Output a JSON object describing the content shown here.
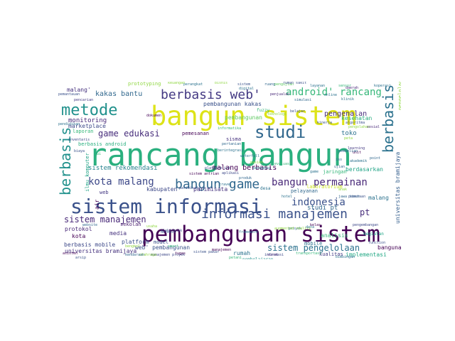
{
  "cloud": {
    "words": [
      {
        "text": "rancang bangun",
        "color": "#2bb07f"
      },
      {
        "text": "bangun sistem",
        "color": "#dde318"
      },
      {
        "text": "pembangunan sistem",
        "color": "#440154"
      },
      {
        "text": "sistem informasi",
        "color": "#3b528b"
      },
      {
        "text": "metode",
        "color": "#21918c"
      },
      {
        "text": "berbasis web'",
        "color": "#443983"
      },
      {
        "text": "studi",
        "color": "#31688e"
      },
      {
        "text": "informasi manajemen",
        "color": "#3b528b"
      },
      {
        "text": "bangun game",
        "color": "#31688e"
      },
      {
        "text": "berbasis",
        "color": "#21918c"
      },
      {
        "text": "berbasis web",
        "color": "#2c728e"
      },
      {
        "text": "android' rancang",
        "color": "#35b779"
      },
      {
        "text": "kota malang",
        "color": "#3e4989"
      },
      {
        "text": "bangun permainan",
        "color": "#482878"
      },
      {
        "text": "indonesia",
        "color": "#3b528b"
      },
      {
        "text": "game edukasi",
        "color": "#472d7b"
      },
      {
        "text": "sistem manajemen",
        "color": "#482878"
      },
      {
        "text": "sistem pengelolaan",
        "color": "#2c728e"
      },
      {
        "text": "kakas bantu",
        "color": "#31688e"
      },
      {
        "text": "pengenalan",
        "color": "#472d7b"
      },
      {
        "text": "malang berbasis",
        "color": "#440154"
      },
      {
        "text": "sistem rekomendasi",
        "color": "#26828e"
      },
      {
        "text": "pembangunan kakas",
        "color": "#3b528b"
      },
      {
        "text": "monitoring",
        "color": "#482878"
      },
      {
        "text": "malang'",
        "color": "#46327e"
      },
      {
        "text": "marketplace",
        "color": "#3e4989"
      },
      {
        "text": "pembangunan",
        "color": "#5ec962"
      },
      {
        "text": "toko",
        "color": "#2c728e"
      },
      {
        "text": "kesehatan",
        "color": "#28ae80"
      },
      {
        "text": "berdasarkan",
        "color": "#20a386"
      },
      {
        "text": "kabupaten",
        "color": "#3e4989"
      },
      {
        "text": "parimisata",
        "color": "#46327e"
      },
      {
        "text": "studi pt",
        "color": "#31688e"
      },
      {
        "text": "pt",
        "color": "#472d7b"
      },
      {
        "text": "malang",
        "color": "#2c728e"
      },
      {
        "text": "universitas bramijaya",
        "color": "#355f8d"
      },
      {
        "text": "bangunan",
        "color": "#440154"
      },
      {
        "text": "berbasis mobile",
        "color": "#3e4989"
      },
      {
        "text": "platform",
        "color": "#3b528b"
      },
      {
        "text": "universitas bramijaya",
        "color": "#46327e"
      },
      {
        "text": "web' pembangunan",
        "color": "#3b528b"
      },
      {
        "text": "rumah",
        "color": "#2c728e"
      },
      {
        "text": "kota",
        "color": "#440154"
      },
      {
        "text": "protokol",
        "color": "#482878"
      },
      {
        "text": "media",
        "color": "#46327e"
      },
      {
        "text": "sekolah",
        "color": "#481c6e"
      },
      {
        "text": "analisis",
        "color": "#35b779"
      },
      {
        "text": "kualitas",
        "color": "#443983"
      },
      {
        "text": "implementasi",
        "color": "#22a884"
      },
      {
        "text": "pelayanan",
        "color": "#31688e"
      },
      {
        "text": "laboratorium",
        "color": "#cae11f"
      },
      {
        "text": "pemesanan",
        "color": "#440154"
      },
      {
        "text": "sisma",
        "color": "#46327e"
      },
      {
        "text": "laporan",
        "color": "#35b779"
      },
      {
        "text": "berbasis android",
        "color": "#29af7f"
      },
      {
        "text": "model",
        "color": "#3b528b"
      },
      {
        "text": "jaringan",
        "color": "#35b779"
      },
      {
        "text": "mobile",
        "color": "#2c728e"
      },
      {
        "text": "prototyping",
        "color": "#90d743"
      },
      {
        "text": "air",
        "color": "#440154"
      },
      {
        "text": "web",
        "color": "#443983"
      },
      {
        "text": "pembelajaran",
        "color": "#21918c"
      },
      {
        "text": "kegiatan",
        "color": "#20a386"
      },
      {
        "text": "pengelolaan",
        "color": "#90d743"
      },
      {
        "text": "ilmu komputer",
        "color": "#20a386"
      },
      {
        "text": "fuzzy",
        "color": "#35b779"
      },
      {
        "text": "desa",
        "color": "#2c728e"
      },
      {
        "text": "sistem",
        "color": "#3b528b"
      },
      {
        "text": "perangkat",
        "color": "#2c728e"
      },
      {
        "text": "digital",
        "color": "#2c728e"
      },
      {
        "text": "algoritma",
        "color": "#3b528b"
      },
      {
        "text": "berintegrasi",
        "color": "#2c728e"
      },
      {
        "text": "waterfall",
        "color": "#2c728e"
      },
      {
        "text": "pasien",
        "color": "#90d743"
      },
      {
        "text": "learning",
        "color": "#443983"
      },
      {
        "text": "aplikasi",
        "color": "#3e4989"
      },
      {
        "text": "unit",
        "color": "#440154"
      },
      {
        "text": "kinerja",
        "color": "#3b528b"
      },
      {
        "text": "ruang",
        "color": "#31688e"
      },
      {
        "text": "evaluasi",
        "color": "#35b779"
      },
      {
        "text": "usaha",
        "color": "#90d743"
      },
      {
        "text": "keuangan",
        "color": "#90d743"
      },
      {
        "text": "layanan",
        "color": "#2c728e"
      },
      {
        "text": "pengujian",
        "color": "#5ec962"
      },
      {
        "text": "bisnis",
        "color": "#90d743"
      },
      {
        "text": "pencarian",
        "color": "#443983"
      },
      {
        "text": "proyek",
        "color": "#31688e"
      },
      {
        "text": "simulasi",
        "color": "#31688e"
      },
      {
        "text": "informatika",
        "color": "#35b779"
      },
      {
        "text": "deteksi",
        "color": "#3b528b"
      },
      {
        "text": "dokumen",
        "color": "#440154"
      },
      {
        "text": "pertanian",
        "color": "#31688e"
      },
      {
        "text": "augmented reality",
        "color": "#90d743"
      },
      {
        "text": "sistem pakar",
        "color": "#3b528b"
      },
      {
        "text": "penjualan",
        "color": "#482878"
      },
      {
        "text": "framework",
        "color": "#2c728e"
      },
      {
        "text": "anak",
        "color": "#90d743"
      },
      {
        "text": "data",
        "color": "#2c728e"
      },
      {
        "text": "informasi",
        "color": "#3e4989"
      },
      {
        "text": "iso",
        "color": "#31688e"
      },
      {
        "text": "ui",
        "color": "#35b779"
      },
      {
        "text": "manajemen proyek",
        "color": "#3e4989"
      },
      {
        "text": "sistem antrian",
        "color": "#440154"
      },
      {
        "text": "peta",
        "color": "#90d743"
      },
      {
        "text": "pengguna",
        "color": "#2c728e"
      },
      {
        "text": "jawa timur",
        "color": "#31688e"
      },
      {
        "text": "rumah sakit",
        "color": "#3b528b"
      },
      {
        "text": "koperasi",
        "color": "#2c728e"
      },
      {
        "text": "biaya",
        "color": "#3b528b"
      },
      {
        "text": "manajemen",
        "color": "#440154"
      },
      {
        "text": "pengolahan",
        "color": "#90d743"
      },
      {
        "text": "pendidikan",
        "color": "#2c728e"
      },
      {
        "text": "produk",
        "color": "#31688e"
      },
      {
        "text": "travel",
        "color": "#2c728e"
      },
      {
        "text": "smart",
        "color": "#35b779"
      },
      {
        "text": "kelas",
        "color": "#440154"
      },
      {
        "text": "pariwisata",
        "color": "#3b528b"
      },
      {
        "text": "platform iot",
        "color": "#3e4989"
      },
      {
        "text": "website",
        "color": "#31688e"
      },
      {
        "text": "hotel",
        "color": "#2c728e"
      },
      {
        "text": "bengkel",
        "color": "#90d743"
      },
      {
        "text": "klinik",
        "color": "#2c728e"
      },
      {
        "text": "ujian",
        "color": "#31688e"
      },
      {
        "text": "pemetaan",
        "color": "#3b528b"
      },
      {
        "text": "sosial",
        "color": "#482878"
      },
      {
        "text": "inventaris",
        "color": "#3e4989"
      },
      {
        "text": "transportasi",
        "color": "#35b779"
      },
      {
        "text": "game",
        "color": "#2c728e"
      },
      {
        "text": "pemantauan",
        "color": "#3b528b"
      },
      {
        "text": "asisten",
        "color": "#440154"
      },
      {
        "text": "teknologi",
        "color": "#90d743"
      },
      {
        "text": "function",
        "color": "#3b528b"
      },
      {
        "text": "point",
        "color": "#31688e"
      },
      {
        "text": "akademik",
        "color": "#2c728e"
      },
      {
        "text": "elektronik",
        "color": "#3e4989"
      },
      {
        "text": "daerah",
        "color": "#482878"
      },
      {
        "text": "sensor",
        "color": "#35b779"
      },
      {
        "text": "online",
        "color": "#2c728e"
      },
      {
        "text": "belajar",
        "color": "#3b528b"
      },
      {
        "text": "pembelian",
        "color": "#31688e"
      },
      {
        "text": "tugas",
        "color": "#440154"
      },
      {
        "text": "bimbingan",
        "color": "#2c728e"
      },
      {
        "text": "pengembangan",
        "color": "#3e4989"
      },
      {
        "text": "olahraga",
        "color": "#90d743"
      },
      {
        "text": "arsip",
        "color": "#3b528b"
      },
      {
        "text": "surat",
        "color": "#482878"
      },
      {
        "text": "kendaraan",
        "color": "#31688e"
      },
      {
        "text": "petani",
        "color": "#35b779"
      }
    ]
  }
}
